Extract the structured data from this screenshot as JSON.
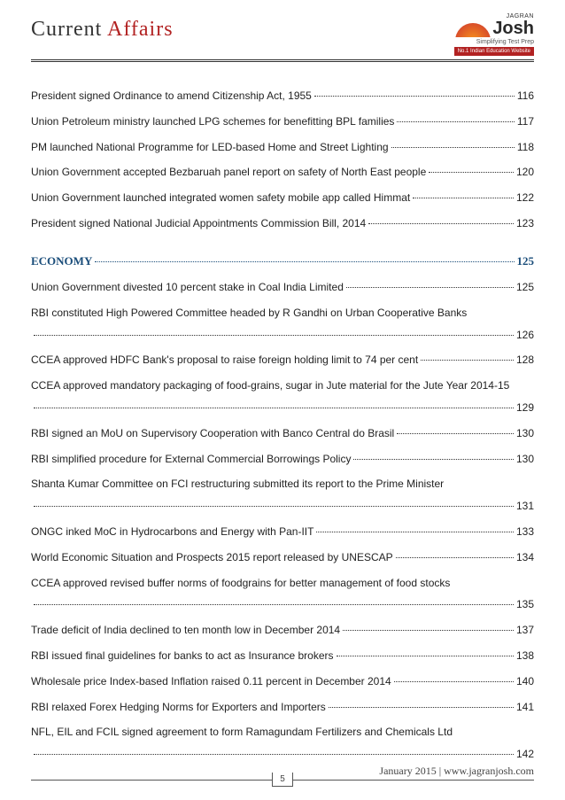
{
  "header": {
    "title_part1": "Current ",
    "title_part2": "Affairs",
    "logo_jagran": "JAGRAN",
    "logo_josh": "Josh",
    "logo_tagline": "Simplifying Test Prep",
    "logo_bar": "No.1 Indian Education Website"
  },
  "toc": {
    "group1": [
      {
        "text": "President signed Ordinance to amend Citizenship Act, 1955",
        "page": "116"
      },
      {
        "text": "Union Petroleum ministry launched LPG schemes for benefitting BPL families",
        "page": "117"
      },
      {
        "text": "PM launched National Programme for LED-based Home and Street Lighting",
        "page": "118"
      },
      {
        "text": "Union Government accepted Bezbaruah panel report on safety of North East people",
        "page": "120"
      },
      {
        "text": "Union Government launched integrated women safety mobile app called Himmat",
        "page": "122"
      },
      {
        "text": "President signed National Judicial Appointments Commission Bill, 2014",
        "page": "123"
      }
    ],
    "section": {
      "label": "ECONOMY",
      "page": "125"
    },
    "group2": [
      {
        "text": "Union Government divested 10 percent stake in Coal India Limited",
        "page": "125"
      },
      {
        "text": "RBI constituted High Powered Committee headed by R Gandhi on Urban Cooperative Banks",
        "page": "126",
        "wrap": true
      },
      {
        "text": "CCEA approved HDFC Bank's proposal to raise foreign holding limit to 74 per cent",
        "page": "128"
      },
      {
        "text": "CCEA approved mandatory packaging of food-grains, sugar in Jute material for the Jute Year 2014-15",
        "page": "129",
        "wrap": true
      },
      {
        "text": "RBI signed an MoU on Supervisory Cooperation with Banco Central do Brasil",
        "page": "130"
      },
      {
        "text": "RBI simplified procedure for External Commercial Borrowings Policy",
        "page": "130"
      },
      {
        "text": "Shanta Kumar Committee on FCI restructuring submitted its report to the Prime Minister",
        "page": "131",
        "wrap": true
      },
      {
        "text": "ONGC inked MoC in Hydrocarbons and Energy with Pan-IIT",
        "page": "133"
      },
      {
        "text": "World Economic Situation and Prospects 2015 report released by UNESCAP",
        "page": "134"
      },
      {
        "text": "CCEA approved revised buffer norms of foodgrains for better management of food stocks",
        "page": "135",
        "wrap": true
      },
      {
        "text": "Trade deficit of India declined to ten month low in December 2014",
        "page": "137"
      },
      {
        "text": "RBI issued final guidelines for banks to act as Insurance brokers",
        "page": "138"
      },
      {
        "text": "Wholesale price Index-based Inflation raised 0.11 percent in December 2014",
        "page": "140"
      },
      {
        "text": "RBI relaxed Forex Hedging Norms for Exporters and Importers",
        "page": "141"
      },
      {
        "text": "NFL, EIL and FCIL signed agreement to form Ramagundam Fertilizers and Chemicals Ltd",
        "page": "142",
        "wrap": true
      }
    ]
  },
  "footer": {
    "page_number": "5",
    "right_text": "January 2015 | www.jagranjosh.com"
  }
}
